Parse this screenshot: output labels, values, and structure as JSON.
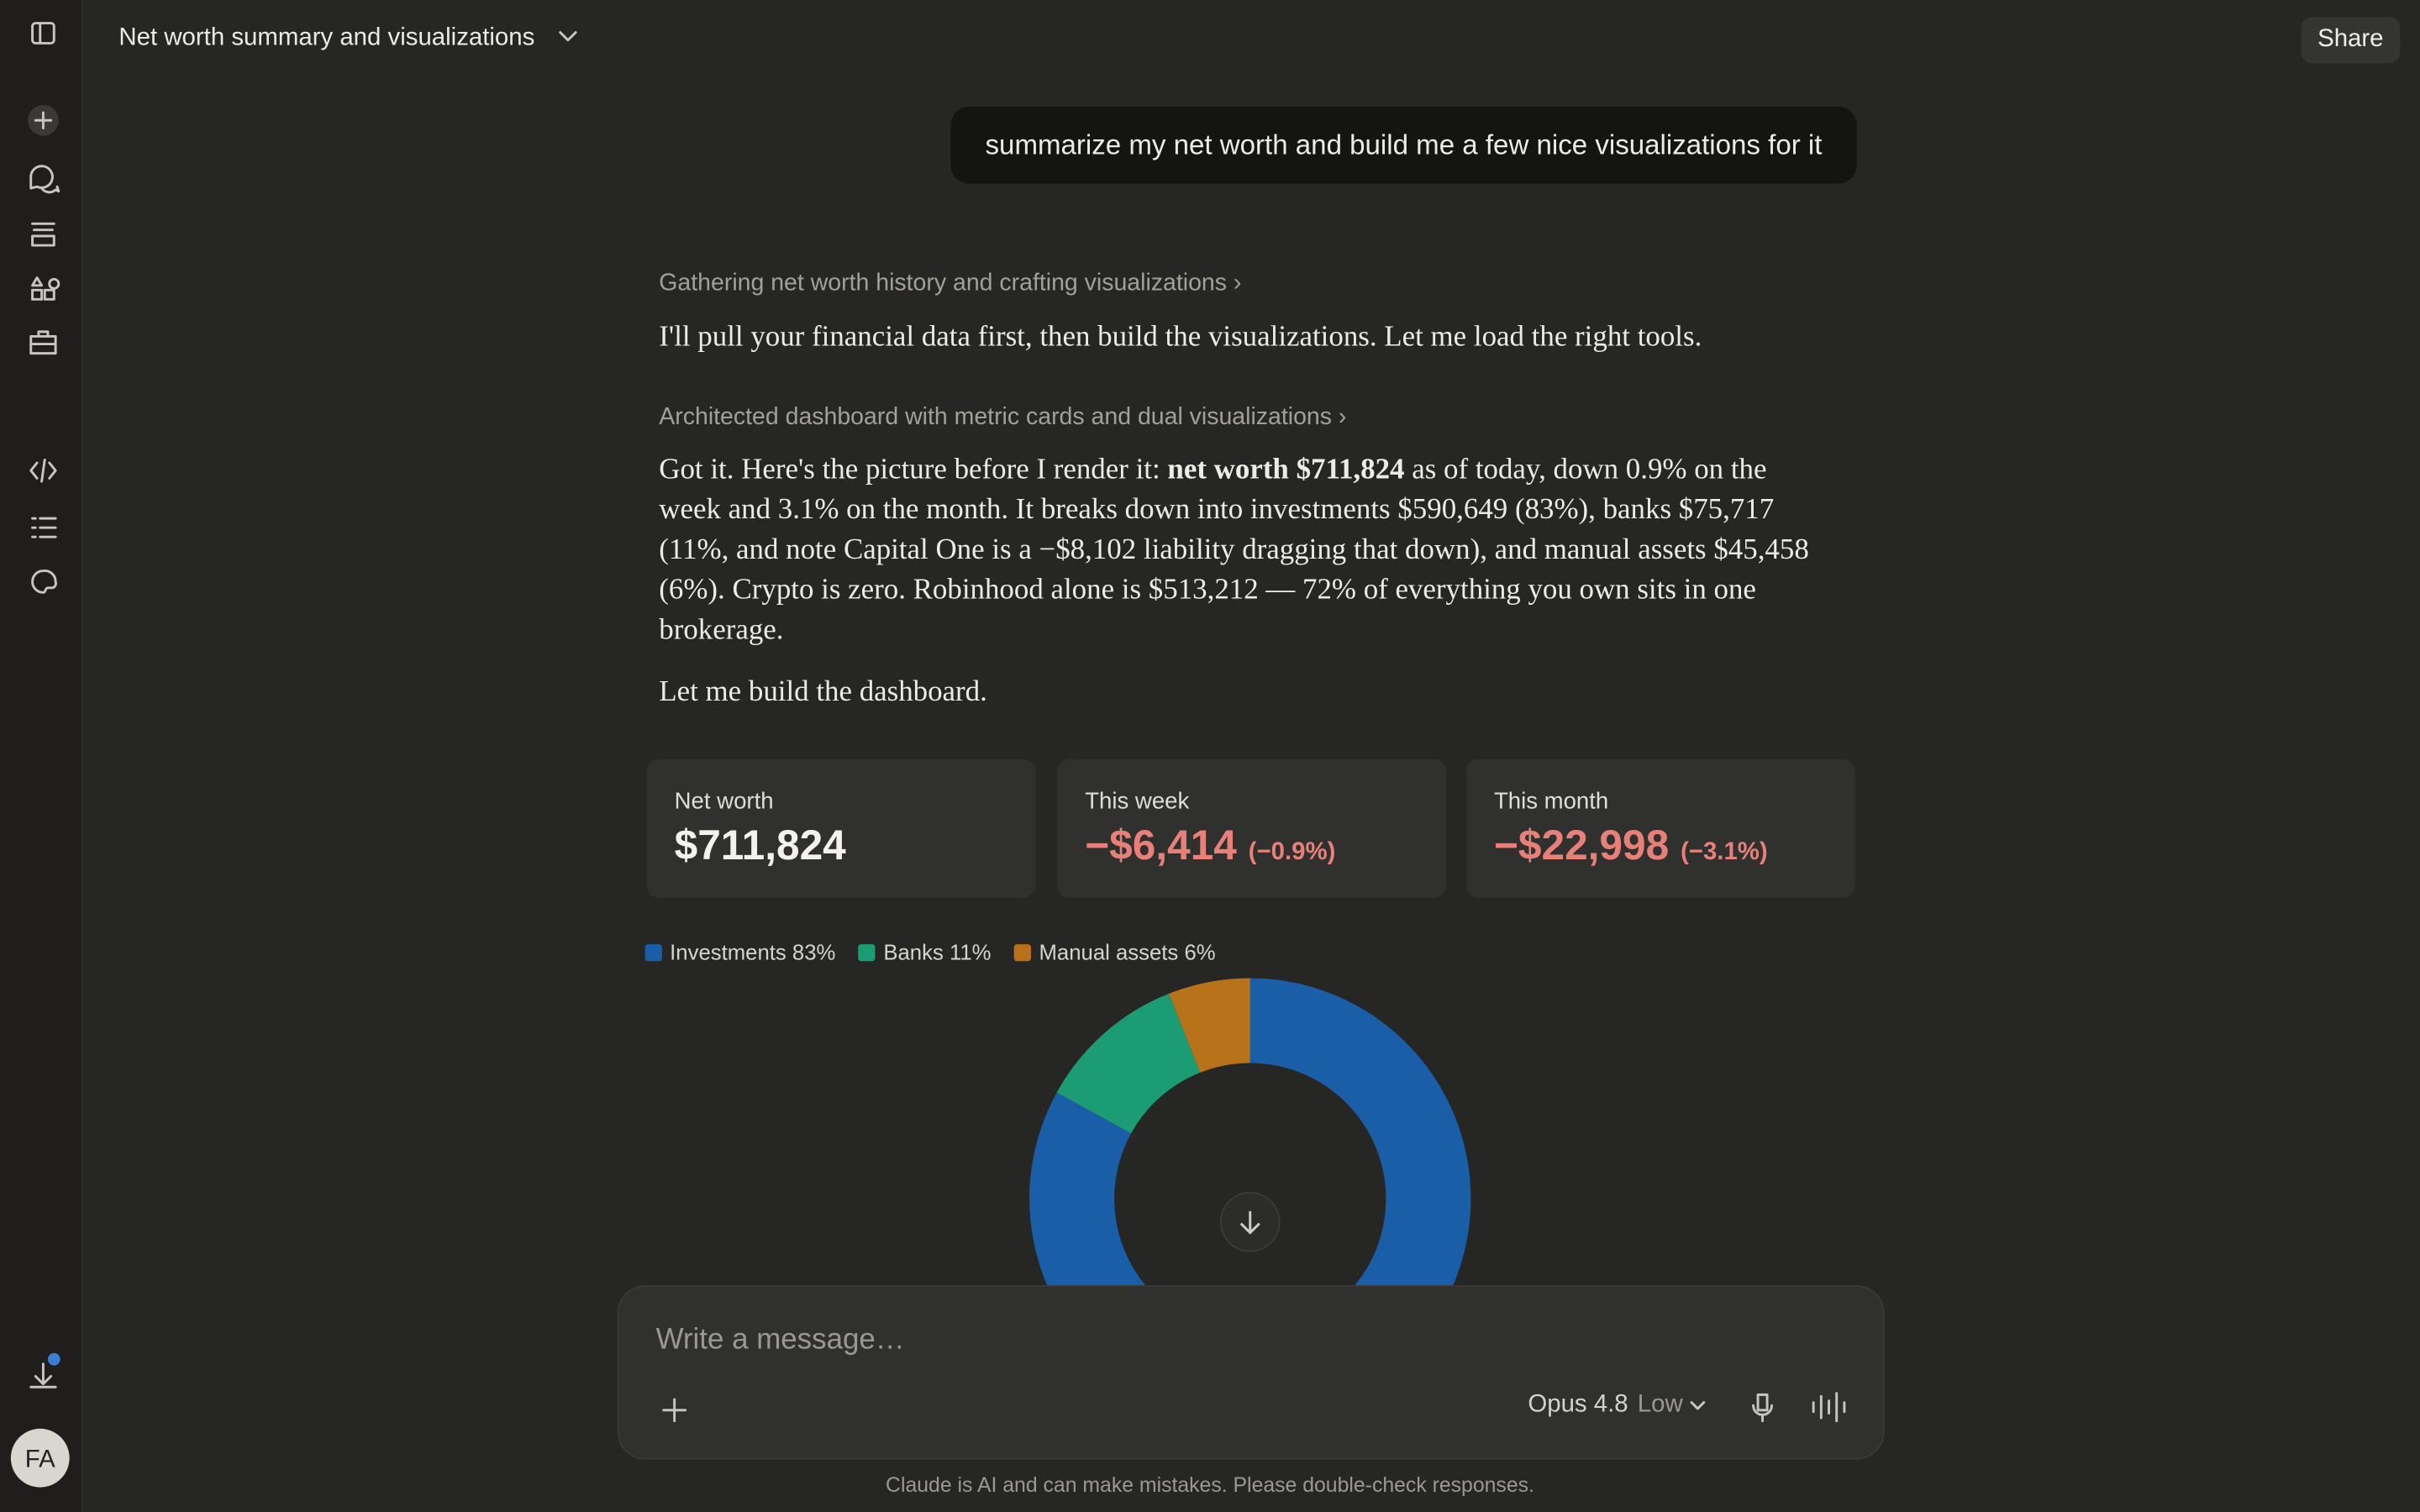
{
  "header": {
    "title": "Net worth summary and visualizations",
    "share": "Share"
  },
  "user_message": "summarize my net worth and build me a few nice visualizations for it",
  "assistant": {
    "thinking_1": "Gathering net worth history and crafting visualizations",
    "paragraph_1": "I'll pull your financial data first, then build the visualizations. Let me load the right tools.",
    "thinking_2": "Architected dashboard with metric cards and dual visualizations",
    "paragraph_2": {
      "before": "Got it. Here's the picture before I render it: ",
      "bold": "net worth $711,824",
      "after": " as of today, down 0.9% on the week and 3.1% on the month. It breaks down into investments $590,649 (83%), banks $75,717 (11%, and note Capital One is a −$8,102 liability dragging that down), and manual assets $45,458 (6%). Crypto is zero. Robinhood alone is $513,212 — 72% of everything you own sits in one brokerage."
    },
    "paragraph_3": "Let me build the dashboard."
  },
  "cards": [
    {
      "label": "Net worth",
      "value": "$711,824"
    },
    {
      "label": "This week",
      "value": "−$6,414",
      "change": "(−0.9%)"
    },
    {
      "label": "This month",
      "value": "−$22,998",
      "change": "(−3.1%)"
    }
  ],
  "chart_data": {
    "type": "donut",
    "categories": [
      "Investments",
      "Banks",
      "Manual assets"
    ],
    "values": [
      83,
      11,
      6
    ],
    "value_labels": [
      "83%",
      "11%",
      "6%"
    ],
    "colors": [
      "#1b5ea8",
      "#1c9c74",
      "#b8731a"
    ]
  },
  "composer": {
    "placeholder": "Write a message…",
    "model": "Opus 4.8",
    "effort": "Low"
  },
  "avatar": "FA",
  "disclaimer": "Claude is AI and can make mistakes. Please double-check responses."
}
